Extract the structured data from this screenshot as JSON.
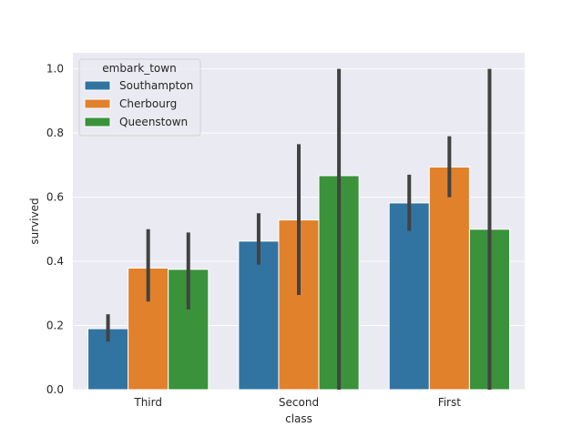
{
  "chart_data": {
    "type": "bar",
    "title": "",
    "xlabel": "class",
    "ylabel": "survived",
    "ylim": [
      0,
      1.05
    ],
    "yticks": [
      0.0,
      0.2,
      0.4,
      0.6,
      0.8,
      1.0
    ],
    "ytick_labels": [
      "0.0",
      "0.2",
      "0.4",
      "0.6",
      "0.8",
      "1.0"
    ],
    "grid": true,
    "categories": [
      "Third",
      "Second",
      "First"
    ],
    "legend": {
      "title": "embark_town",
      "position": "top-left"
    },
    "series": [
      {
        "name": "Southampton",
        "color": "#3274a1",
        "values": [
          0.19,
          0.463,
          0.582
        ],
        "ci_low": [
          0.15,
          0.39,
          0.495
        ],
        "ci_high": [
          0.235,
          0.55,
          0.67
        ]
      },
      {
        "name": "Cherbourg",
        "color": "#e1812c",
        "values": [
          0.379,
          0.529,
          0.694
        ],
        "ci_low": [
          0.275,
          0.295,
          0.6
        ],
        "ci_high": [
          0.5,
          0.765,
          0.79
        ]
      },
      {
        "name": "Queenstown",
        "color": "#3a923a",
        "values": [
          0.375,
          0.667,
          0.5
        ],
        "ci_low": [
          0.25,
          0.0,
          0.0
        ],
        "ci_high": [
          0.49,
          1.0,
          1.0
        ]
      }
    ]
  }
}
